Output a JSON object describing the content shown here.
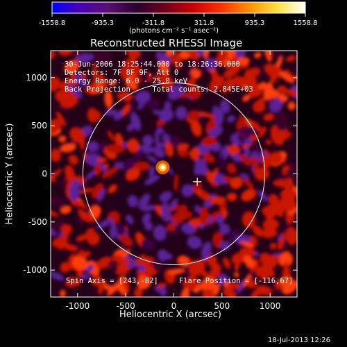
{
  "colorbar": {
    "tick_labels": [
      "-1558.8",
      "-935.3",
      "-311.8",
      "311.8",
      "935.3",
      "1558.8"
    ],
    "unit_label": "(photons cm⁻² s⁻¹ asec⁻²)",
    "range": [
      -1558.8,
      1558.8
    ],
    "colormap": [
      "#0000ff",
      "#4b00b4",
      "#5a1070",
      "#2a0030",
      "#6e0018",
      "#c80000",
      "#ff3000",
      "#ff9000",
      "#ffe040",
      "#ffffff"
    ]
  },
  "plot": {
    "title": "Reconstructed RHESSI Image",
    "xlabel": "Heliocentric X (arcsec)",
    "ylabel": "Heliocentric Y (arcsec)",
    "x_ticks": [
      "-1000",
      "-500",
      "0",
      "500",
      "1000"
    ],
    "y_ticks": [
      "1000",
      "500",
      "0",
      "-500",
      "-1000"
    ],
    "x_range": [
      -1280,
      1280
    ],
    "y_range": [
      -1280,
      1280
    ],
    "annotations": {
      "line1": "30-Jun-2006 18:25:44.000 to 18:26:36.000",
      "line2": "Detectors: 7F 8F 9F, Att 0",
      "line3": "Energy Range: 6.0 - 25.0 keV",
      "line4": "Back Projection     Total counts: 2.845E+03",
      "spin_axis": "Spin Axis = [243,-82]",
      "flare_position": "Flare Position = [-116,67]"
    },
    "solar_limb_radius_arcsec": 945,
    "flare_center": [
      -116,
      67
    ],
    "marker_center": [
      243,
      -82
    ]
  },
  "footer": {
    "timestamp": "18-Jul-2013 12:26"
  },
  "colors": {
    "background": "#000000",
    "foreground": "#ffffff"
  }
}
